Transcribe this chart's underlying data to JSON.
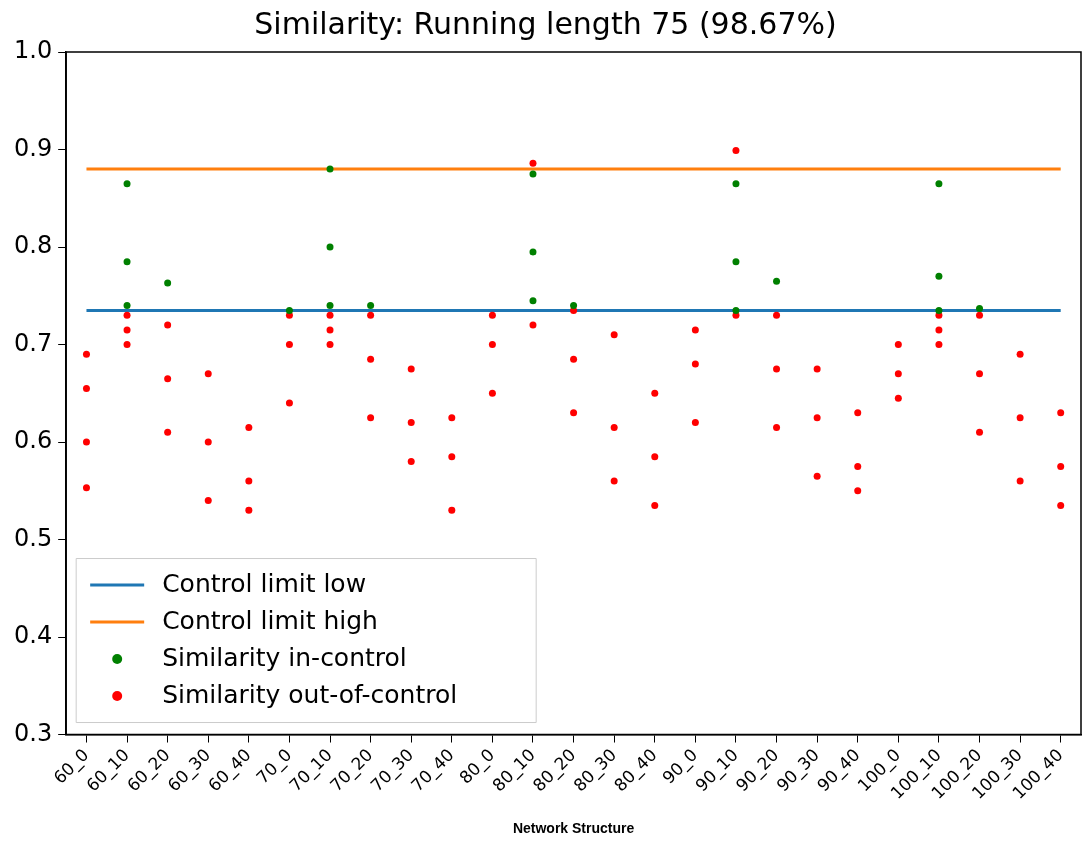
{
  "chart_data": {
    "type": "scatter",
    "title": "Similarity: Running length 75 (98.67%)",
    "xlabel": "Network Structure",
    "categories": [
      "60_0",
      "60_10",
      "60_20",
      "60_30",
      "60_40",
      "70_0",
      "70_10",
      "70_20",
      "70_30",
      "70_40",
      "80_0",
      "80_10",
      "80_20",
      "80_30",
      "80_40",
      "90_0",
      "90_10",
      "90_20",
      "90_30",
      "90_40",
      "100_0",
      "100_10",
      "100_20",
      "100_30",
      "100_40"
    ],
    "ylim": [
      0.3,
      1.0
    ],
    "yticks": [
      {
        "value": 0.3,
        "label": "0.3"
      },
      {
        "value": 0.4,
        "label": "0.4"
      },
      {
        "value": 0.5,
        "label": "0.5"
      },
      {
        "value": 0.6,
        "label": "0.6"
      },
      {
        "value": 0.7,
        "label": "0.7"
      },
      {
        "value": 0.8,
        "label": "0.8"
      },
      {
        "value": 0.9,
        "label": "0.9"
      },
      {
        "value": 1.0,
        "label": "1.0"
      }
    ],
    "grid": false,
    "legend": "bottom left",
    "marker": "circle",
    "series": [
      {
        "name": "Control limit low",
        "type": "line",
        "marker": "none",
        "line_style": "solid",
        "color": "#1f77b4",
        "values": [
          0.735,
          0.735,
          0.735,
          0.735,
          0.735,
          0.735,
          0.735,
          0.735,
          0.735,
          0.735,
          0.735,
          0.735,
          0.735,
          0.735,
          0.735,
          0.735,
          0.735,
          0.735,
          0.735,
          0.735,
          0.735,
          0.735,
          0.735,
          0.735,
          0.735
        ]
      },
      {
        "name": "Control limit high",
        "type": "line",
        "marker": "none",
        "line_style": "solid",
        "color": "#ff7f0e",
        "values": [
          0.88,
          0.88,
          0.88,
          0.88,
          0.88,
          0.88,
          0.88,
          0.88,
          0.88,
          0.88,
          0.88,
          0.88,
          0.88,
          0.88,
          0.88,
          0.88,
          0.88,
          0.88,
          0.88,
          0.88,
          0.88,
          0.88,
          0.88,
          0.88,
          0.88
        ]
      },
      {
        "name": "Similarity in-control",
        "color": "#008000",
        "x": [
          "60_10",
          "60_10",
          "60_10",
          "60_20",
          "70_0",
          "70_10",
          "70_10",
          "70_10",
          "70_20",
          "80_10",
          "80_10",
          "80_10",
          "80_20",
          "90_10",
          "90_10",
          "90_10",
          "90_20",
          "100_10",
          "100_10",
          "100_10",
          "100_20"
        ],
        "values": [
          0.865,
          0.785,
          0.74,
          0.763,
          0.735,
          0.88,
          0.8,
          0.74,
          0.74,
          0.875,
          0.795,
          0.745,
          0.74,
          0.865,
          0.785,
          0.735,
          0.765,
          0.865,
          0.77,
          0.735,
          0.737
        ]
      },
      {
        "name": "Similarity out-of-control",
        "color": "#ff0000",
        "x": [
          "60_0",
          "60_0",
          "60_0",
          "60_0",
          "60_10",
          "60_10",
          "60_10",
          "60_20",
          "60_20",
          "60_20",
          "60_30",
          "60_30",
          "60_30",
          "60_40",
          "60_40",
          "60_40",
          "70_0",
          "70_0",
          "70_0",
          "70_10",
          "70_10",
          "70_10",
          "70_20",
          "70_20",
          "70_20",
          "70_30",
          "70_30",
          "70_30",
          "70_40",
          "70_40",
          "70_40",
          "80_0",
          "80_0",
          "80_0",
          "80_10",
          "80_10",
          "80_20",
          "80_20",
          "80_20",
          "80_30",
          "80_30",
          "80_30",
          "80_40",
          "80_40",
          "80_40",
          "90_0",
          "90_0",
          "90_0",
          "90_10",
          "90_10",
          "90_20",
          "90_20",
          "90_20",
          "90_30",
          "90_30",
          "90_30",
          "90_40",
          "90_40",
          "90_40",
          "100_0",
          "100_0",
          "100_0",
          "100_10",
          "100_10",
          "100_10",
          "100_20",
          "100_20",
          "100_20",
          "100_30",
          "100_30",
          "100_30",
          "100_40",
          "100_40",
          "100_40"
        ],
        "values": [
          0.69,
          0.655,
          0.6,
          0.553,
          0.73,
          0.715,
          0.7,
          0.72,
          0.665,
          0.61,
          0.67,
          0.6,
          0.54,
          0.615,
          0.56,
          0.53,
          0.73,
          0.7,
          0.64,
          0.73,
          0.715,
          0.7,
          0.73,
          0.685,
          0.625,
          0.675,
          0.62,
          0.58,
          0.625,
          0.585,
          0.53,
          0.73,
          0.7,
          0.65,
          0.886,
          0.72,
          0.735,
          0.685,
          0.63,
          0.71,
          0.615,
          0.56,
          0.65,
          0.585,
          0.535,
          0.715,
          0.68,
          0.62,
          0.899,
          0.73,
          0.73,
          0.675,
          0.615,
          0.675,
          0.625,
          0.565,
          0.63,
          0.575,
          0.55,
          0.7,
          0.67,
          0.645,
          0.73,
          0.715,
          0.7,
          0.73,
          0.67,
          0.61,
          0.69,
          0.625,
          0.56,
          0.63,
          0.575,
          0.535
        ]
      }
    ]
  }
}
